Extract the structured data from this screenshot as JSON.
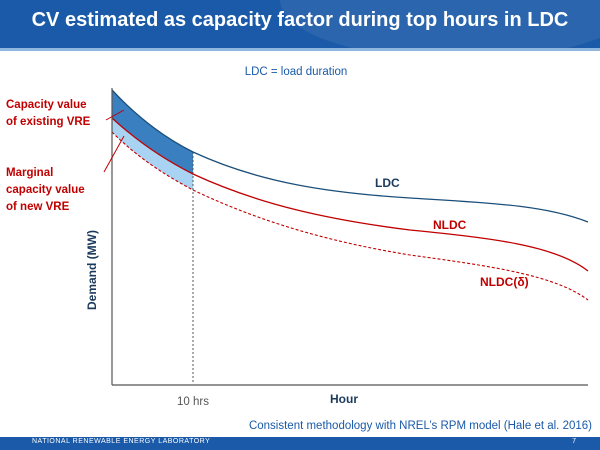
{
  "slide": {
    "title": "CV estimated as capacity factor during top hours in LDC",
    "subtitle": "LDC = load duration",
    "footnote": "Consistent methodology with NREL’s RPM model (Hale et al. 2016)",
    "footer_lab": "NATIONAL RENEWABLE ENERGY LABORATORY",
    "page_number": "7"
  },
  "diagram": {
    "ylabel": "Demand (MW)",
    "xlabel": "Hour",
    "cutoff_label": "10 hrs",
    "curves": {
      "ldc": "LDC",
      "nldc": "NLDC",
      "nldc_delta": "NLDC(δ)"
    },
    "annotations": {
      "capacity_value": [
        "Capacity value",
        "of existing VRE"
      ],
      "marginal_value": [
        "Marginal",
        "capacity value",
        "of new VRE"
      ]
    },
    "colors": {
      "ldc": "#1b4f7a",
      "nldc": "#c00000",
      "existing_area": "#3a7fc0",
      "marginal_area": "#a9d3f2",
      "annotation_text": "#c00000",
      "accent": "#1a5aa8"
    }
  }
}
